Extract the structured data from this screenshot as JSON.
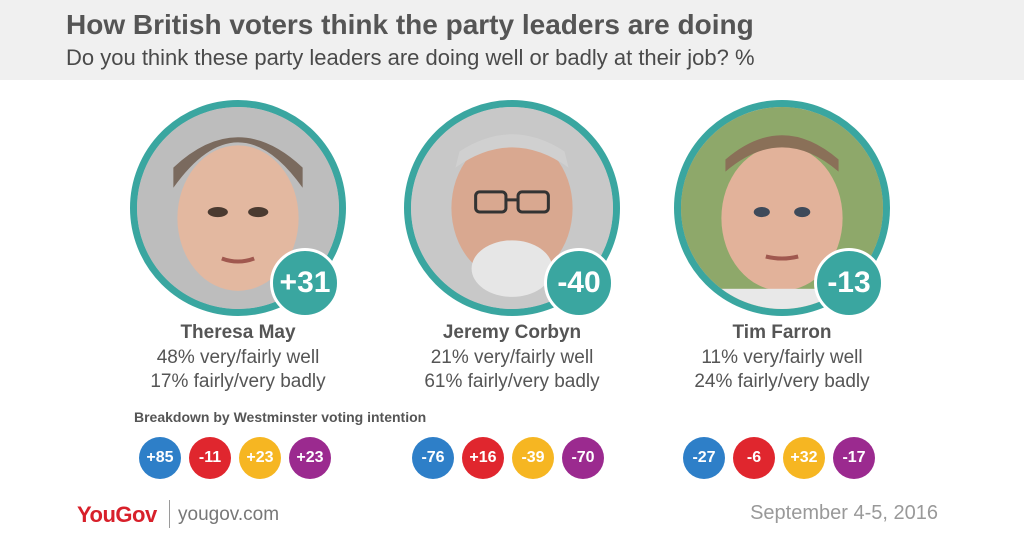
{
  "header": {
    "title": "How British voters think the party leaders are doing",
    "subtitle": "Do you think these party leaders are doing well or badly at their job? %"
  },
  "colors": {
    "accent": "#3aa6a0",
    "conservative": "#2e7fc8",
    "labour": "#e0262e",
    "libdem": "#f6b622",
    "ukip": "#9b2a8f",
    "brand": "#d8202a"
  },
  "leaders": [
    {
      "name": "Theresa May",
      "score": "+31",
      "well": "48% very/fairly well",
      "badly": "17% fairly/very badly",
      "breakdown": [
        "+85",
        "-11",
        "+23",
        "+23"
      ]
    },
    {
      "name": "Jeremy Corbyn",
      "score": "-40",
      "well": "21% very/fairly well",
      "badly": "61% fairly/very badly",
      "breakdown": [
        "-76",
        "+16",
        "-39",
        "-70"
      ]
    },
    {
      "name": "Tim Farron",
      "score": "-13",
      "well": "11% very/fairly well",
      "badly": "24% fairly/very badly",
      "breakdown": [
        "-27",
        "-6",
        "+32",
        "-17"
      ]
    }
  ],
  "breakdown_label": "Breakdown by Westminster voting intention",
  "footer": {
    "logo": "YouGov",
    "site": "yougov.com",
    "date": "September 4-5, 2016"
  }
}
